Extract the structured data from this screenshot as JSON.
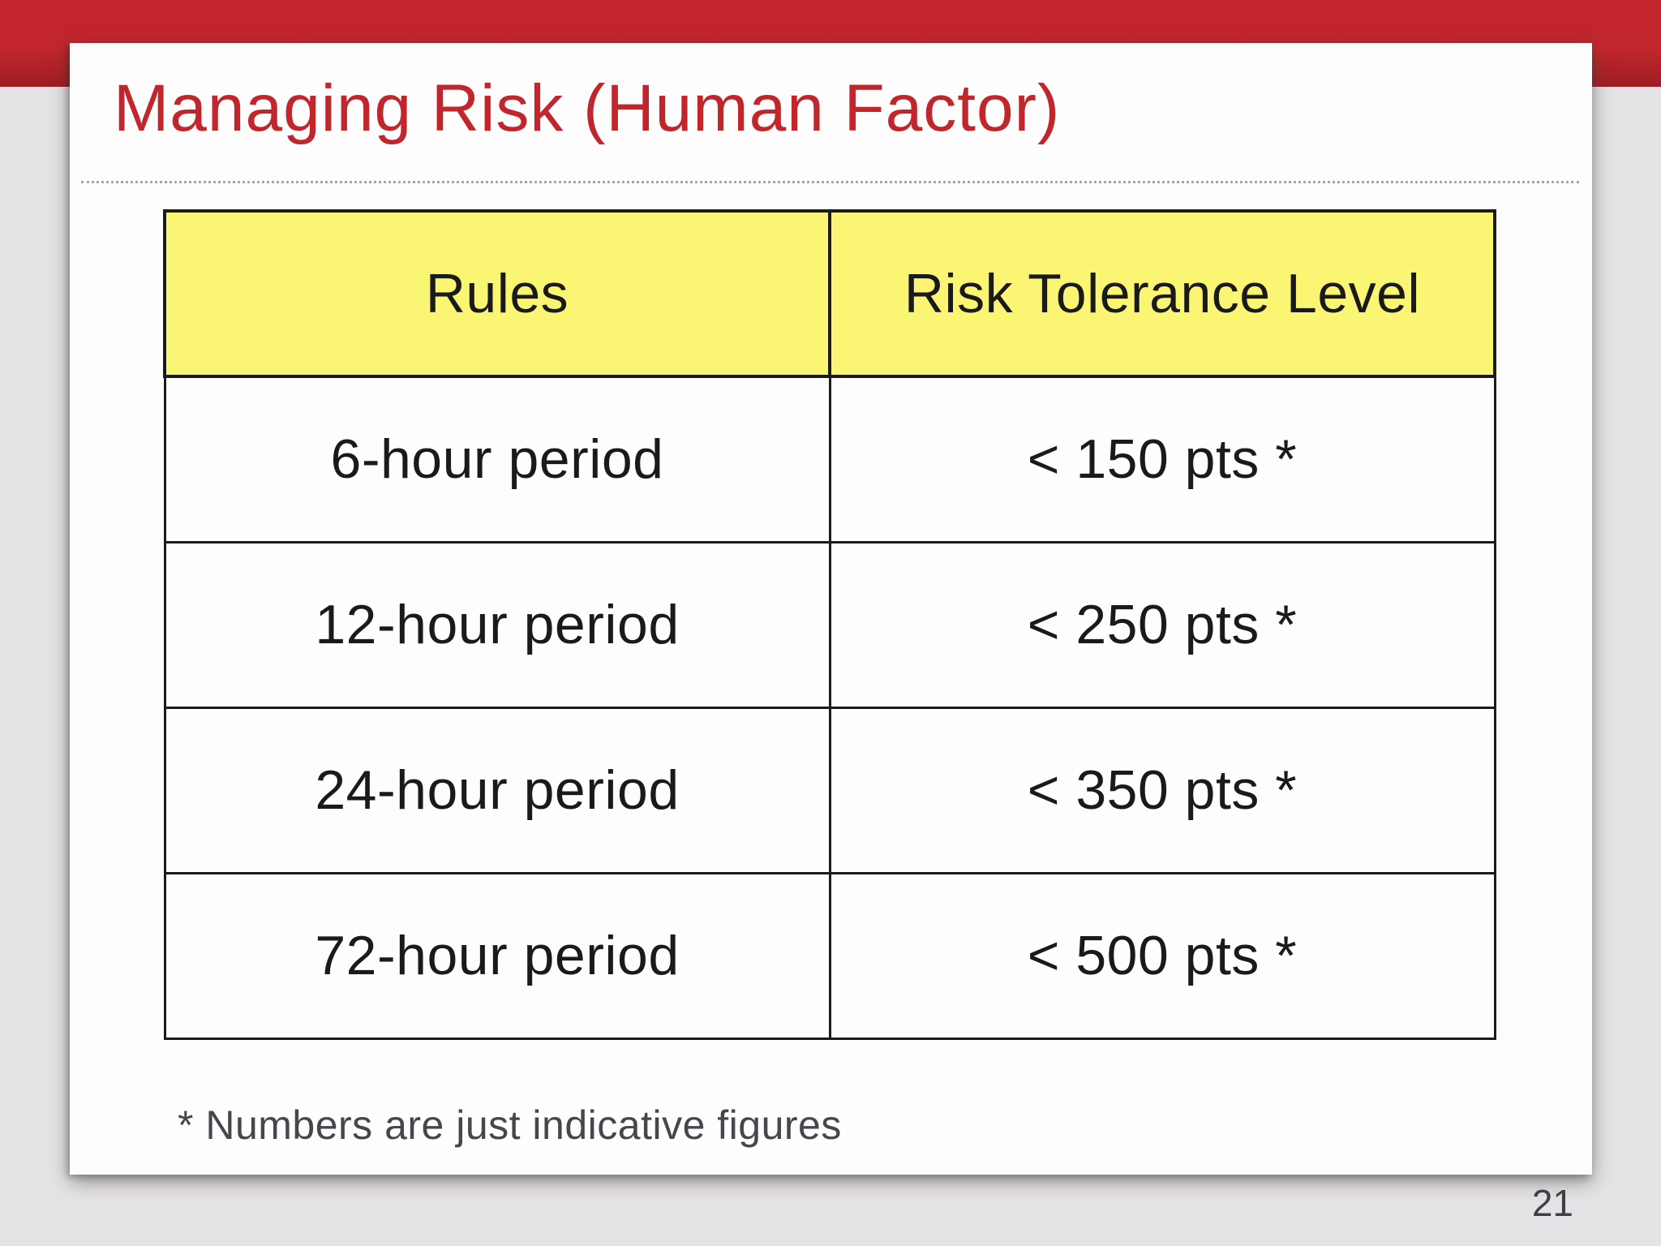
{
  "slide": {
    "title": "Managing Risk (Human Factor)",
    "footnote": "* Numbers are just indicative figures",
    "page_number": "21",
    "table": {
      "headers": [
        "Rules",
        "Risk Tolerance Level"
      ],
      "rows": [
        [
          "6-hour period",
          "< 150 pts *"
        ],
        [
          "12-hour period",
          "< 250 pts *"
        ],
        [
          "24-hour period",
          "< 350 pts *"
        ],
        [
          "72-hour period",
          "< 500 pts *"
        ]
      ]
    },
    "colors": {
      "banner_red_top": "#C2252B",
      "banner_red_bottom": "#9E1D23",
      "title_red": "#C0262C",
      "header_yellow": "#FAF573",
      "table_border": "#1B1B1B",
      "background_gray": "#E5E3E5",
      "slide_white": "#FDFDFD",
      "footnote_gray": "#46464C"
    }
  }
}
